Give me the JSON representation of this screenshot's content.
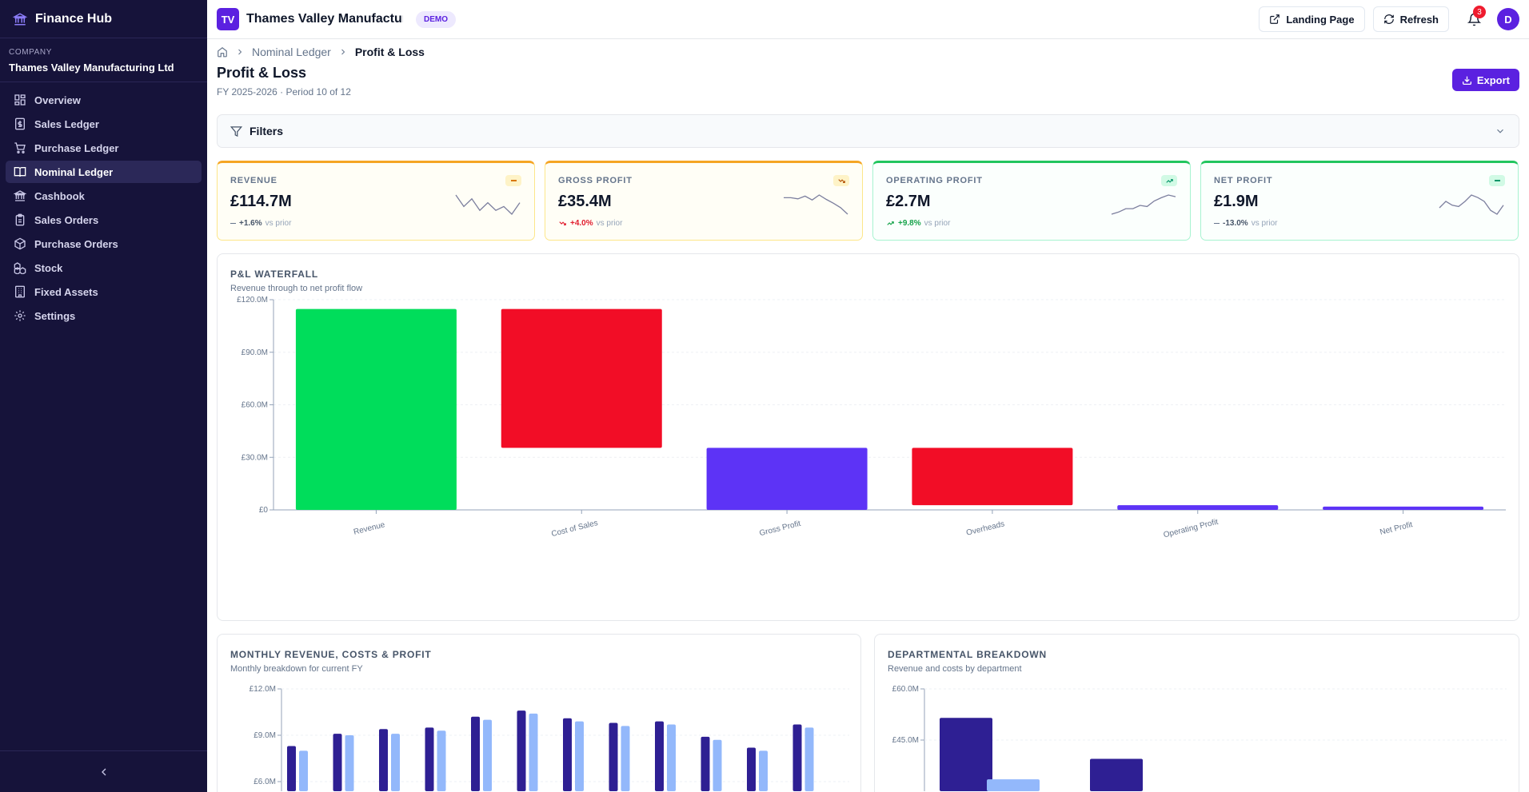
{
  "app": {
    "brand": "Finance Hub",
    "company_label": "COMPANY",
    "company_name": "Thames Valley Manufacturing Ltd"
  },
  "sidebar": {
    "items": [
      {
        "label": "Overview",
        "icon": "dashboard-icon",
        "active": false
      },
      {
        "label": "Sales Ledger",
        "icon": "receipt-icon",
        "active": false
      },
      {
        "label": "Purchase Ledger",
        "icon": "cart-icon",
        "active": false
      },
      {
        "label": "Nominal Ledger",
        "icon": "book-icon",
        "active": true
      },
      {
        "label": "Cashbook",
        "icon": "bank-icon",
        "active": false
      },
      {
        "label": "Sales Orders",
        "icon": "clipboard-icon",
        "active": false
      },
      {
        "label": "Purchase Orders",
        "icon": "package-icon",
        "active": false
      },
      {
        "label": "Stock",
        "icon": "boxes-icon",
        "active": false
      },
      {
        "label": "Fixed Assets",
        "icon": "building-icon",
        "active": false
      },
      {
        "label": "Settings",
        "icon": "gear-icon",
        "active": false
      }
    ]
  },
  "topbar": {
    "logo_text": "TV",
    "org_title": "Thames Valley Manufacturi...",
    "demo_badge": "DEMO",
    "landing_label": "Landing Page",
    "refresh_label": "Refresh",
    "notifications": "3",
    "avatar": "D"
  },
  "breadcrumb": {
    "items": [
      "Nominal Ledger",
      "Profit & Loss"
    ]
  },
  "page": {
    "title": "Profit & Loss",
    "subtitle": "FY 2025-2026 · Period 10 of 12",
    "export_label": "Export",
    "filters_label": "Filters"
  },
  "kpis": [
    {
      "label": "REVENUE",
      "value": "£114.7M",
      "change": "+1.6%",
      "suffix": "vs prior",
      "trend": "flat",
      "spark": [
        6,
        3,
        5,
        2,
        4,
        2,
        3,
        1,
        4
      ]
    },
    {
      "label": "GROSS PROFIT",
      "value": "£35.4M",
      "change": "+4.0%",
      "suffix": "vs prior",
      "trend": "down",
      "spark": [
        5,
        5,
        4.8,
        5.3,
        4.6,
        5.5,
        4.7,
        4,
        3.2,
        2
      ]
    },
    {
      "label": "OPERATING PROFIT",
      "value": "£2.7M",
      "change": "+9.8%",
      "suffix": "vs prior",
      "trend": "up",
      "spark": [
        1,
        1.4,
        2,
        2,
        2.6,
        2.4,
        3.4,
        4,
        4.5,
        4.2
      ]
    },
    {
      "label": "NET PROFIT",
      "value": "£1.9M",
      "change": "-13.0%",
      "suffix": "vs prior",
      "trend": "flat",
      "spark": [
        3,
        4,
        3.4,
        3.2,
        4,
        5,
        4.6,
        4,
        2.6,
        2,
        3.4
      ]
    }
  ],
  "colors": {
    "positive": "#00dd5b",
    "negative": "#f20d26",
    "total": "#5d33f6",
    "accent": "#5b21e0",
    "dark_bar": "#2e1f93",
    "light_bar": "#93b8fb"
  },
  "waterfall": {
    "title": "P&L WATERFALL",
    "subtitle": "Revenue through to net profit flow",
    "chart_data": {
      "type": "bar",
      "categories": [
        "Revenue",
        "Cost of Sales",
        "Gross Profit",
        "Overheads",
        "Operating Profit",
        "Net Profit"
      ],
      "bars": [
        {
          "start": 0,
          "end": 114.7,
          "kind": "positive"
        },
        {
          "start": 35.4,
          "end": 114.7,
          "kind": "negative"
        },
        {
          "start": 0,
          "end": 35.4,
          "kind": "total"
        },
        {
          "start": 2.7,
          "end": 35.4,
          "kind": "negative"
        },
        {
          "start": 0,
          "end": 2.7,
          "kind": "total"
        },
        {
          "start": 0,
          "end": 1.9,
          "kind": "total"
        }
      ],
      "yticks": [
        "£0",
        "£30.0M",
        "£60.0M",
        "£90.0M",
        "£120.0M"
      ],
      "ylim": [
        0,
        120
      ]
    }
  },
  "monthly": {
    "title": "MONTHLY REVENUE, COSTS & PROFIT",
    "subtitle": "Monthly breakdown for current FY",
    "chart_data": {
      "type": "bar",
      "series": [
        {
          "values": [
            8.3,
            9.1,
            9.4,
            9.5,
            10.2,
            10.6,
            10.1,
            9.8,
            9.9,
            8.9,
            8.2,
            9.7
          ]
        },
        {
          "values": [
            8.0,
            9.0,
            9.1,
            9.3,
            10.0,
            10.4,
            9.9,
            9.6,
            9.7,
            8.7,
            8.0,
            9.5
          ]
        }
      ],
      "yticks": [
        "£6.0M",
        "£9.0M",
        "£12.0M"
      ],
      "ylim": [
        3,
        12
      ]
    }
  },
  "departmental": {
    "title": "DEPARTMENTAL BREAKDOWN",
    "subtitle": "Revenue and costs by department",
    "chart_data": {
      "type": "bar",
      "series": [
        {
          "values": [
            51.5,
            39.5
          ]
        },
        {
          "values": [
            33.5
          ]
        }
      ],
      "yticks": [
        "£45.0M",
        "£60.0M"
      ],
      "ylim": [
        30,
        60
      ]
    }
  }
}
